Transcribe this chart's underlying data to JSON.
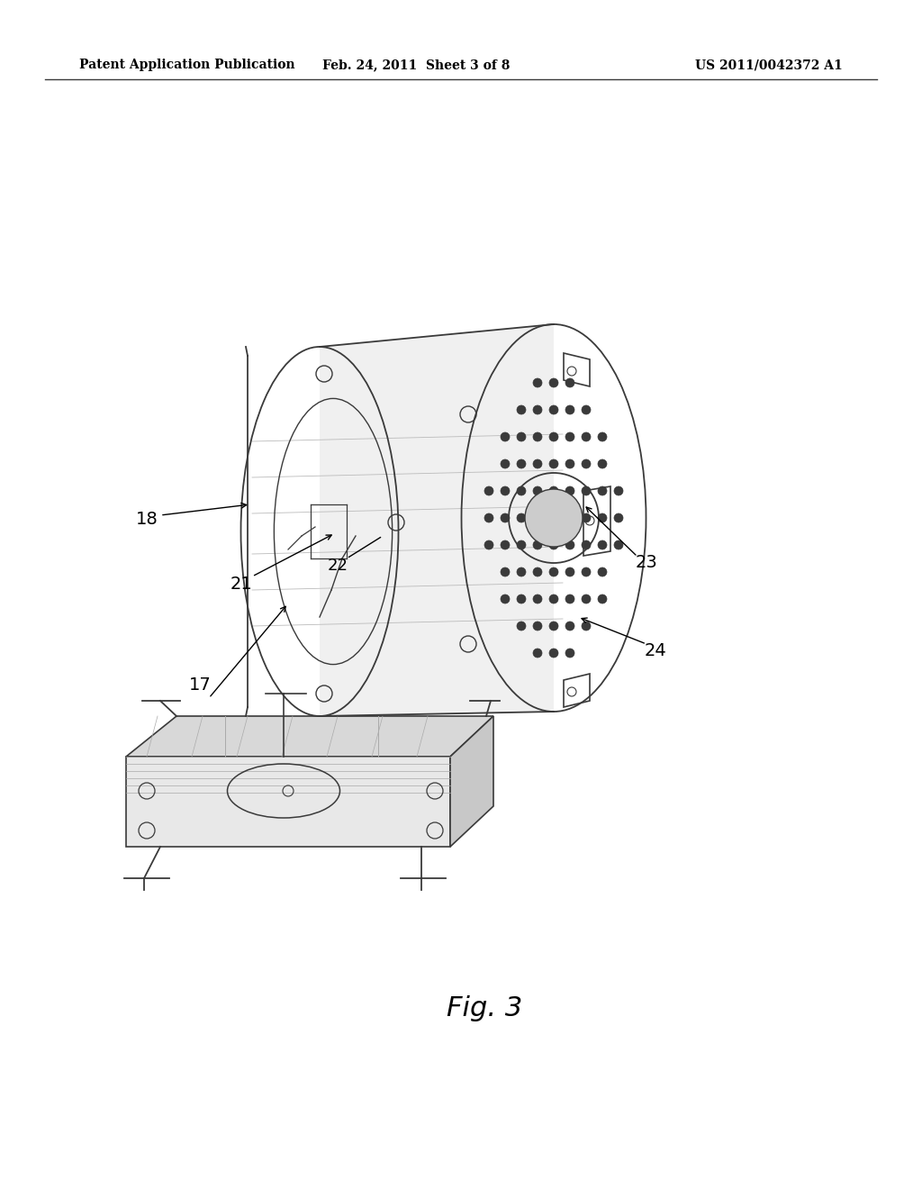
{
  "background_color": "#ffffff",
  "header_left": "Patent Application Publication",
  "header_center": "Feb. 24, 2011  Sheet 3 of 8",
  "header_right": "US 2011/0042372 A1",
  "header_fontsize": 10,
  "figure_label": "Fig. 3",
  "line_color": "#3a3a3a",
  "light_line_color": "#aaaaaa",
  "ref_fontsize": 14,
  "fig_label_fontsize": 22
}
